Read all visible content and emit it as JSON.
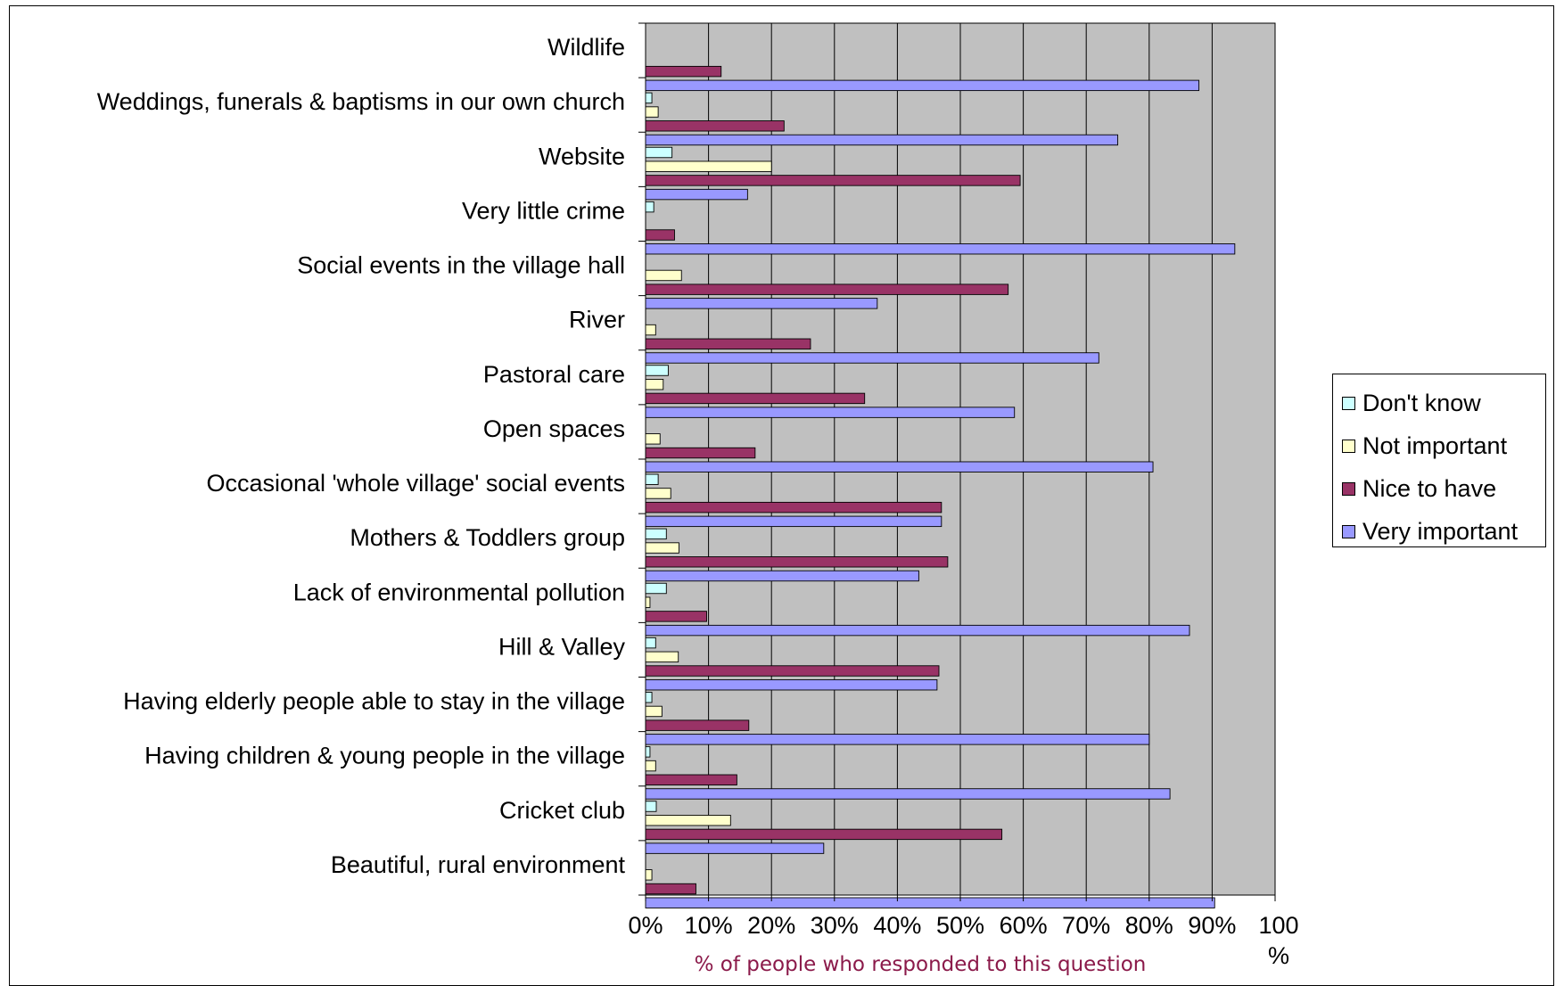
{
  "chart_data": {
    "type": "bar",
    "orientation": "horizontal",
    "categories": [
      "Wildlife",
      "Weddings, funerals & baptisms in our own church",
      "Website",
      "Very little crime",
      "Social events in the village hall",
      "River",
      "Pastoral care",
      "Open spaces",
      "Occasional 'whole village' social events",
      "Mothers & Toddlers group",
      "Lack of environmental pollution",
      "Hill & Valley",
      "Having elderly people able to stay in the village",
      "Having children & young people in the village",
      "Cricket club",
      "Beautiful, rural environment"
    ],
    "series": [
      {
        "name": "Don't know",
        "color": "#ccffff",
        "values": [
          0,
          1.0,
          4.2,
          1.3,
          0,
          0,
          3.6,
          0,
          2.0,
          3.3,
          3.3,
          1.6,
          1.0,
          0.7,
          1.7,
          0
        ]
      },
      {
        "name": "Not important",
        "color": "#ffffcc",
        "values": [
          0,
          2.0,
          20.0,
          0,
          5.7,
          1.6,
          2.8,
          2.3,
          4.0,
          5.3,
          0.7,
          5.2,
          2.6,
          1.6,
          13.5,
          1.0
        ]
      },
      {
        "name": "Nice to have",
        "color": "#993366",
        "values": [
          12.0,
          22.0,
          59.5,
          4.6,
          57.6,
          26.2,
          34.8,
          17.4,
          47.0,
          48.0,
          9.7,
          46.6,
          16.4,
          14.5,
          56.6,
          8.0
        ]
      },
      {
        "name": "Very important",
        "color": "#9999ff",
        "values": [
          87.9,
          75.0,
          16.2,
          93.6,
          36.8,
          72.0,
          58.6,
          80.6,
          47.0,
          43.4,
          86.4,
          46.3,
          80.0,
          83.3,
          28.3,
          90.4
        ]
      }
    ],
    "x_ticks": [
      "0%",
      "10%",
      "20%",
      "30%",
      "40%",
      "50%",
      "60%",
      "70%",
      "80%",
      "90%",
      "100%"
    ],
    "xlim": [
      0,
      100
    ],
    "xlabel": "% of people who responded to this question",
    "plot_background": "#c0c0c0",
    "grid": true,
    "legend_position": "right"
  }
}
